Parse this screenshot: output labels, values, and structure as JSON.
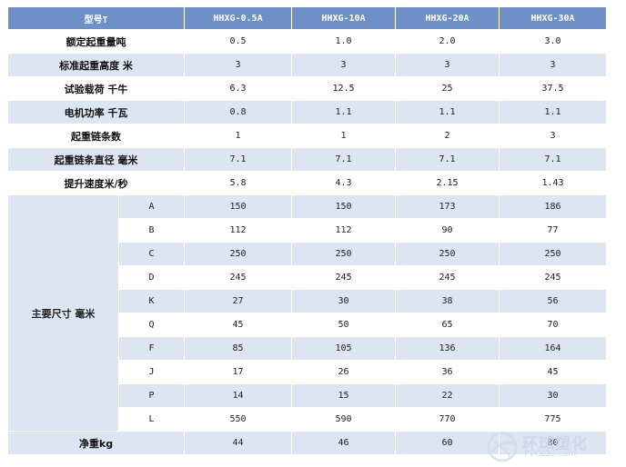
{
  "header": [
    "型号T",
    "HHXG-0.5A",
    "HHXG-10A",
    "HHXG-20A",
    "HHXG-30A"
  ],
  "rows": [
    {
      "label": "额定起重量吨",
      "values": [
        "0.5",
        "1.0",
        "2.0",
        "3.0"
      ]
    },
    {
      "label": "标准起重高度 米",
      "values": [
        "3",
        "3",
        "3",
        "3"
      ]
    },
    {
      "label": "试验载荷 千牛",
      "values": [
        "6.3",
        "12.5",
        "25",
        "37.5"
      ]
    },
    {
      "label": "电机功率 千瓦",
      "values": [
        "0.8",
        "1.1",
        "1.1",
        "1.1"
      ]
    },
    {
      "label": "起重链条数",
      "values": [
        "1",
        "1",
        "2",
        "3"
      ]
    },
    {
      "label": "起重链条直径 毫米",
      "values": [
        "7.1",
        "7.1",
        "7.1",
        "7.1"
      ]
    },
    {
      "label": "提升速度米/秒",
      "values": [
        "5.8",
        "4.3",
        "2.15",
        "1.43"
      ]
    }
  ],
  "dims_group_label": "主要尺寸 毫米",
  "dims": [
    {
      "code": "A",
      "values": [
        "150",
        "150",
        "173",
        "186"
      ]
    },
    {
      "code": "B",
      "values": [
        "112",
        "112",
        "90",
        "77"
      ]
    },
    {
      "code": "C",
      "values": [
        "250",
        "250",
        "250",
        "250"
      ]
    },
    {
      "code": "D",
      "values": [
        "245",
        "245",
        "245",
        "245"
      ]
    },
    {
      "code": "K",
      "values": [
        "27",
        "30",
        "38",
        "56"
      ]
    },
    {
      "code": "Q",
      "values": [
        "45",
        "50",
        "65",
        "70"
      ]
    },
    {
      "code": "F",
      "values": [
        "85",
        "105",
        "136",
        "164"
      ]
    },
    {
      "code": "J",
      "values": [
        "17",
        "26",
        "36",
        "45"
      ]
    },
    {
      "code": "P",
      "values": [
        "14",
        "15",
        "22",
        "30"
      ]
    },
    {
      "code": "L",
      "values": [
        "550",
        "590",
        "770",
        "775"
      ]
    }
  ],
  "weight_row": {
    "label": "净重kg",
    "values": [
      "44",
      "46",
      "60",
      "80"
    ]
  },
  "watermark": {
    "text": "环球塑化",
    "url": "PVC123.com"
  },
  "colors": {
    "header_bg": "#6f8fc7",
    "alt_row_bg": "#dde5f2",
    "plain_row_bg": "#ffffff"
  }
}
